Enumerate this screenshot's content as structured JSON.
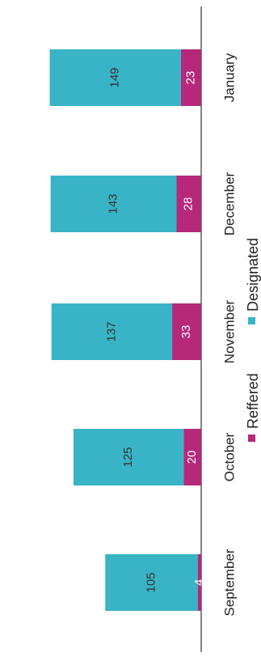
{
  "chart_data": {
    "type": "bar",
    "stacked": true,
    "orientation": "horizontal",
    "categories": [
      "September",
      "October",
      "November",
      "December",
      "January"
    ],
    "series": [
      {
        "name": "Reffered",
        "values": [
          4,
          20,
          33,
          28,
          23
        ],
        "color": "#b5287a",
        "label_color": "#ffffff"
      },
      {
        "name": "Designated",
        "values": [
          105,
          125,
          137,
          143,
          149
        ],
        "color": "#39b4c6",
        "label_color": "#333333"
      }
    ],
    "xlim": [
      0,
      180
    ],
    "grid": false,
    "legend_placement": "bottom",
    "data_labels": true
  }
}
